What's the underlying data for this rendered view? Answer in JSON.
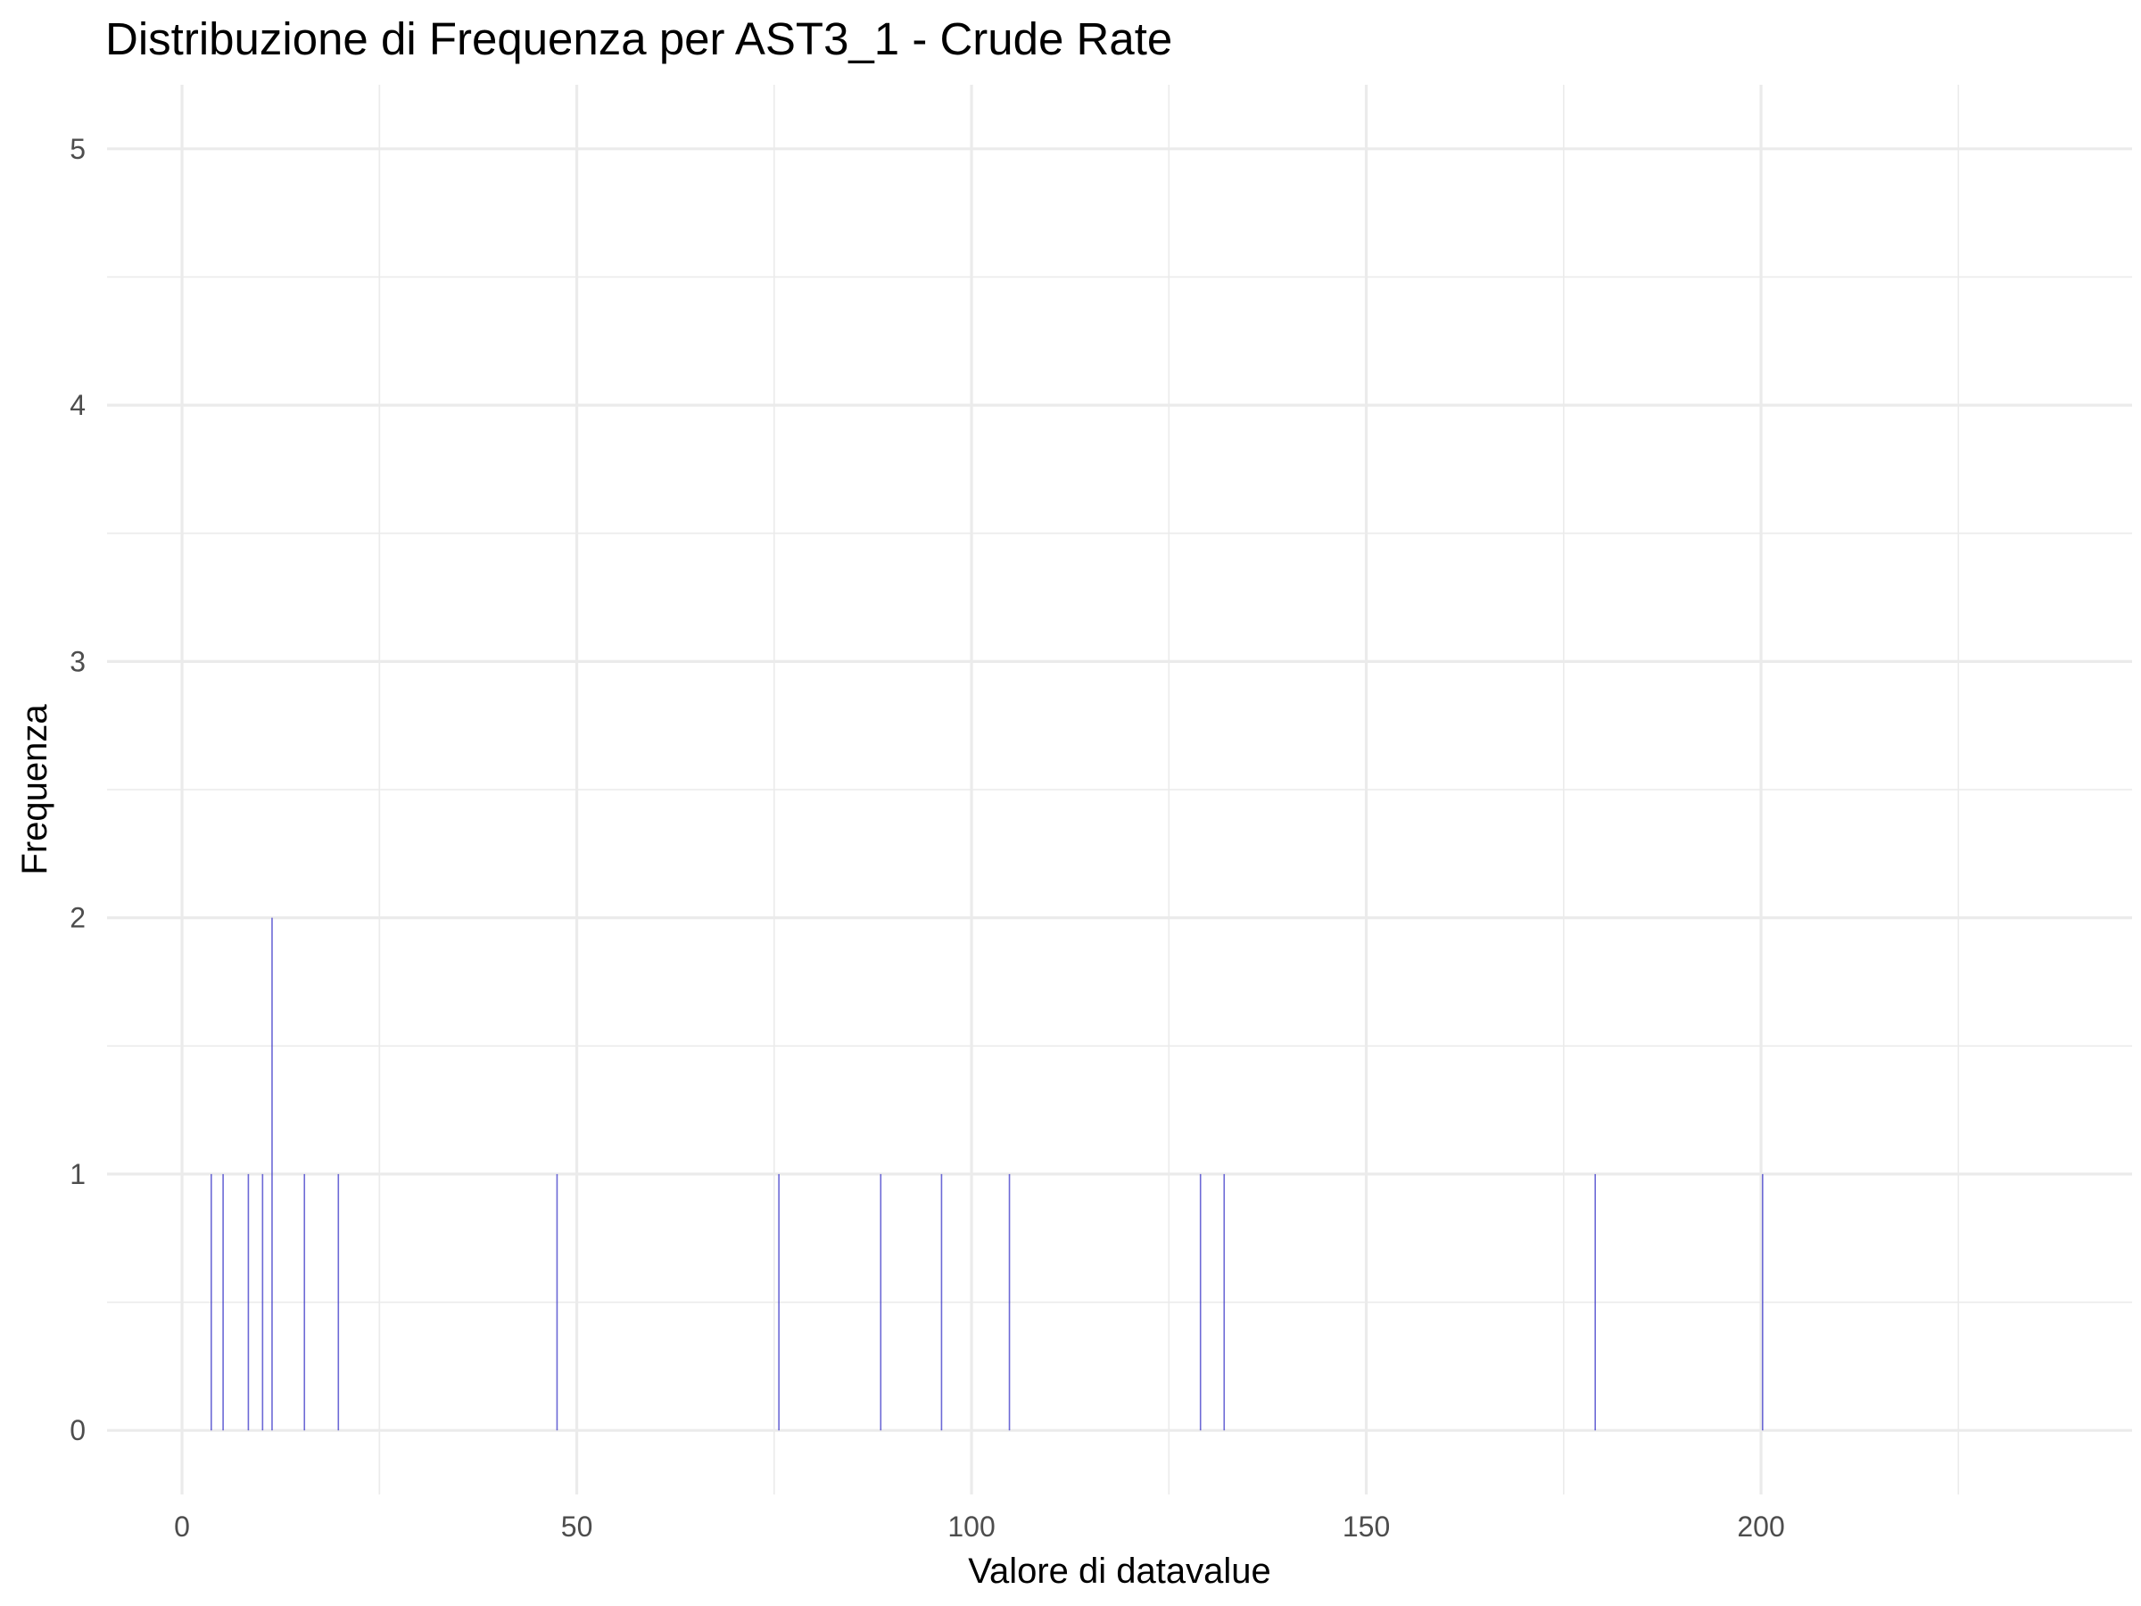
{
  "chart_data": {
    "type": "bar",
    "title": "Distribuzione di Frequenza per AST3_1 - Crude Rate",
    "xlabel": "Valore di datavalue",
    "ylabel": "Frequenza",
    "xlim": [
      -9.5,
      247
    ],
    "ylim": [
      -0.25,
      5.25
    ],
    "x_ticks": [
      0,
      50,
      100,
      150,
      200
    ],
    "y_ticks": [
      0,
      1,
      2,
      3,
      4,
      5
    ],
    "grid": true,
    "bar_color": "#3b37c8",
    "grid_color": "#ebebeb",
    "bins": [
      {
        "x": 3.7,
        "count": 1
      },
      {
        "x": 5.2,
        "count": 1
      },
      {
        "x": 8.4,
        "count": 1
      },
      {
        "x": 10.2,
        "count": 1
      },
      {
        "x": 11.4,
        "count": 2
      },
      {
        "x": 15.5,
        "count": 1
      },
      {
        "x": 19.8,
        "count": 1
      },
      {
        "x": 47.5,
        "count": 1
      },
      {
        "x": 75.6,
        "count": 1
      },
      {
        "x": 88.5,
        "count": 1
      },
      {
        "x": 96.2,
        "count": 1
      },
      {
        "x": 104.8,
        "count": 1
      },
      {
        "x": 129.0,
        "count": 1
      },
      {
        "x": 132.0,
        "count": 1
      },
      {
        "x": 179.0,
        "count": 1
      },
      {
        "x": 200.2,
        "count": 1
      }
    ]
  }
}
